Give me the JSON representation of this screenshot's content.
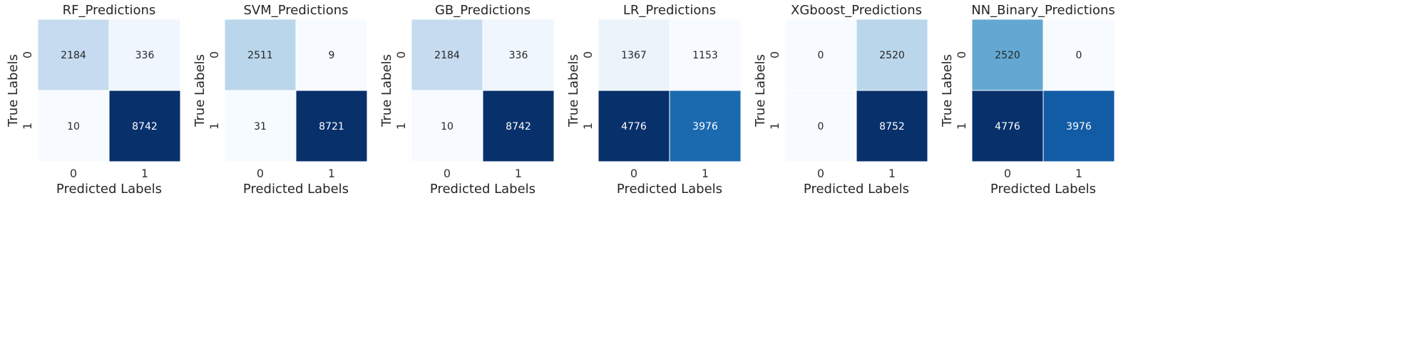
{
  "chart_data": [
    {
      "type": "heatmap",
      "title": "RF_Predictions",
      "xlabel": "Predicted Labels",
      "ylabel": "True Labels",
      "x_ticks": [
        "0",
        "1"
      ],
      "y_ticks": [
        "0",
        "1"
      ],
      "values": [
        [
          2184,
          336
        ],
        [
          10,
          8742
        ]
      ],
      "colormap": "Blues",
      "colorbar": false
    },
    {
      "type": "heatmap",
      "title": "SVM_Predictions",
      "xlabel": "Predicted Labels",
      "ylabel": "True Labels",
      "x_ticks": [
        "0",
        "1"
      ],
      "y_ticks": [
        "0",
        "1"
      ],
      "values": [
        [
          2511,
          9
        ],
        [
          31,
          8721
        ]
      ],
      "colormap": "Blues",
      "colorbar": false
    },
    {
      "type": "heatmap",
      "title": "GB_Predictions",
      "xlabel": "Predicted Labels",
      "ylabel": "True Labels",
      "x_ticks": [
        "0",
        "1"
      ],
      "y_ticks": [
        "0",
        "1"
      ],
      "values": [
        [
          2184,
          336
        ],
        [
          10,
          8742
        ]
      ],
      "colormap": "Blues",
      "colorbar": false
    },
    {
      "type": "heatmap",
      "title": "LR_Predictions",
      "xlabel": "Predicted Labels",
      "ylabel": "True Labels",
      "x_ticks": [
        "0",
        "1"
      ],
      "y_ticks": [
        "0",
        "1"
      ],
      "values": [
        [
          1367,
          1153
        ],
        [
          4776,
          3976
        ]
      ],
      "colormap": "Blues",
      "colorbar": false
    },
    {
      "type": "heatmap",
      "title": "XGboost_Predictions",
      "xlabel": "Predicted Labels",
      "ylabel": "True Labels",
      "x_ticks": [
        "0",
        "1"
      ],
      "y_ticks": [
        "0",
        "1"
      ],
      "values": [
        [
          0,
          2520
        ],
        [
          0,
          8752
        ]
      ],
      "colormap": "Blues",
      "colorbar": false
    },
    {
      "type": "heatmap",
      "title": "NN_Binary_Predictions",
      "xlabel": "Predicted Labels",
      "ylabel": "True Labels",
      "x_ticks": [
        "0",
        "1"
      ],
      "y_ticks": [
        "0",
        "1"
      ],
      "values": [
        [
          2520,
          0
        ],
        [
          4776,
          3976
        ]
      ],
      "colormap": "Blues",
      "colorbar": false
    }
  ]
}
